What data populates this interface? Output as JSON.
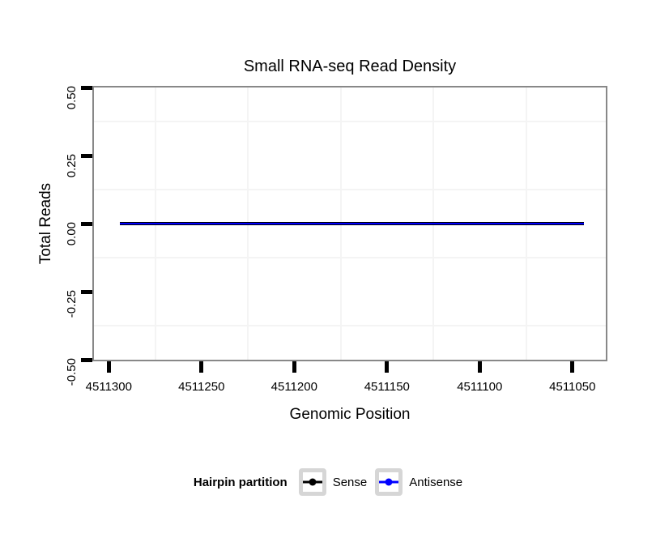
{
  "colors": {
    "background": "#ffffff",
    "panel_border": "#888888",
    "tick": "#000000",
    "grid_minor": "#f4f4f4",
    "sense": "#000000",
    "antisense": "#0000ff",
    "legend_key_border": "#d6d6d6"
  },
  "chart_data": {
    "type": "line",
    "title": "Small RNA-seq Read Density",
    "xlabel": "Genomic Position",
    "ylabel": "Total Reads",
    "grid": "minor-only",
    "legend_position": "bottom",
    "x_axis": {
      "reversed": true,
      "domain_left": 4511308,
      "domain_right": 4511032,
      "ticks": [
        4511300,
        4511250,
        4511200,
        4511150,
        4511100,
        4511050
      ],
      "tick_labels": [
        "4511300",
        "4511250",
        "4511200",
        "4511150",
        "4511100",
        "4511050"
      ]
    },
    "y_axis": {
      "domain_top": 0.5,
      "domain_bottom": -0.5,
      "ticks": [
        0.5,
        0.25,
        0,
        -0.25,
        -0.5
      ],
      "tick_labels": [
        "0.50",
        "0.25",
        "0.00",
        "-0.25",
        "-0.50"
      ]
    },
    "series": [
      {
        "name": "Sense",
        "color": "#000000",
        "x": [
          4511294,
          4511044
        ],
        "y": [
          0,
          0
        ]
      },
      {
        "name": "Antisense",
        "color": "#0000ff",
        "x": [
          4511294,
          4511044
        ],
        "y": [
          0,
          0
        ]
      }
    ],
    "legend": {
      "title": "Hairpin partition",
      "entries": [
        {
          "label": "Sense",
          "color": "#000000"
        },
        {
          "label": "Antisense",
          "color": "#0000ff"
        }
      ]
    }
  }
}
